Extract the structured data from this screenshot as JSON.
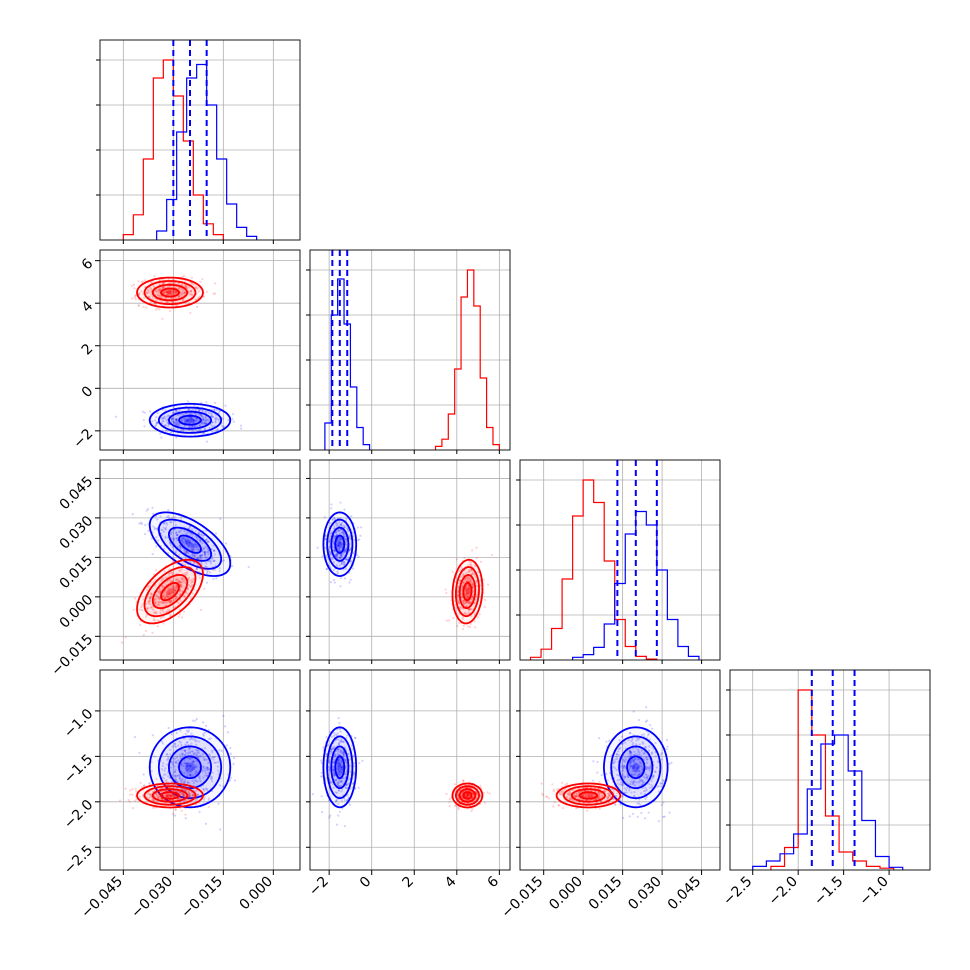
{
  "chart_data": {
    "type": "corner",
    "title": "",
    "parameters": [
      "",
      "",
      "",
      ""
    ],
    "series": [
      {
        "name": "",
        "color": "#0000ff",
        "means": [
          -0.025,
          -1.5,
          0.02,
          -1.62
        ],
        "stds": [
          0.0055,
          0.35,
          0.0055,
          0.2
        ],
        "correlations": [
          [
            0,
            0,
            1,
            0.45
          ],
          [
            0,
            2,
            1,
            -0.6
          ],
          [
            1,
            2,
            -0.6,
            0
          ],
          [
            0,
            3,
            0.3,
            0
          ],
          [
            1,
            3,
            0,
            0
          ],
          [
            2,
            3,
            0,
            0
          ]
        ],
        "quantiles": [
          [
            -0.03,
            -0.025,
            -0.02
          ],
          [
            -1.85,
            -1.5,
            -1.15
          ],
          [
            0.013,
            0.02,
            0.028
          ],
          [
            -1.85,
            -1.62,
            -1.38
          ]
        ]
      },
      {
        "name": "",
        "color": "#ff0000",
        "means": [
          -0.031,
          4.5,
          0.002,
          -1.93
        ],
        "stds": [
          0.0045,
          0.32,
          0.0055,
          0.06
        ],
        "correlations": [
          [
            0,
            2,
            0.55
          ],
          [
            1,
            2,
            0.1
          ],
          [
            0,
            3,
            0.0
          ],
          [
            1,
            3,
            0.0
          ],
          [
            2,
            3,
            0.0
          ]
        ]
      }
    ],
    "marginal_histograms": {
      "blue": [
        {
          "edges": [
            -0.035,
            -0.032,
            -0.029,
            -0.026,
            -0.023,
            -0.02,
            -0.017,
            -0.014,
            -0.011,
            -0.008,
            -0.005
          ],
          "counts": [
            10,
            45,
            120,
            180,
            195,
            150,
            90,
            40,
            14,
            4
          ]
        },
        {
          "edges": [
            -2.2,
            -1.9,
            -1.6,
            -1.3,
            -1.0,
            -0.7,
            -0.4,
            -0.1
          ],
          "counts": [
            30,
            150,
            190,
            140,
            70,
            25,
            6
          ]
        },
        {
          "edges": [
            -0.004,
            0.0,
            0.004,
            0.008,
            0.012,
            0.016,
            0.02,
            0.024,
            0.028,
            0.032,
            0.036,
            0.04,
            0.044
          ],
          "counts": [
            3,
            6,
            14,
            40,
            85,
            140,
            165,
            150,
            100,
            45,
            15,
            4
          ]
        },
        {
          "edges": [
            -2.5,
            -2.35,
            -2.2,
            -2.05,
            -1.9,
            -1.75,
            -1.6,
            -1.45,
            -1.3,
            -1.15,
            -1.0,
            -0.85
          ],
          "counts": [
            4,
            10,
            18,
            40,
            90,
            140,
            150,
            110,
            55,
            15,
            3
          ]
        }
      ],
      "red": [
        {
          "edges": [
            -0.045,
            -0.042,
            -0.039,
            -0.036,
            -0.033,
            -0.03,
            -0.027,
            -0.024,
            -0.021,
            -0.018,
            -0.015
          ],
          "counts": [
            6,
            28,
            90,
            180,
            200,
            160,
            110,
            50,
            18,
            6
          ]
        },
        {
          "edges": [
            3.0,
            3.3,
            3.6,
            3.9,
            4.2,
            4.5,
            4.8,
            5.1,
            5.4,
            5.7,
            6.0
          ],
          "counts": [
            4,
            12,
            40,
            90,
            170,
            200,
            160,
            80,
            25,
            6
          ]
        },
        {
          "edges": [
            -0.02,
            -0.016,
            -0.012,
            -0.008,
            -0.004,
            0.0,
            0.004,
            0.008,
            0.012,
            0.016,
            0.02,
            0.024,
            0.028
          ],
          "counts": [
            3,
            12,
            35,
            90,
            160,
            200,
            175,
            110,
            45,
            15,
            4,
            1
          ]
        },
        {
          "edges": [
            -2.3,
            -2.15,
            -2.0,
            -1.85,
            -1.7,
            -1.55,
            -1.4,
            -1.25,
            -1.1,
            -0.95
          ],
          "counts": [
            4,
            25,
            200,
            150,
            60,
            20,
            10,
            4,
            2
          ]
        }
      ]
    },
    "axis_ranges": [
      [
        -0.052,
        0.008
      ],
      [
        -2.9,
        6.5
      ],
      [
        -0.024,
        0.052
      ],
      [
        -2.75,
        -0.55
      ]
    ],
    "tick_labels": [
      [
        "−0.045",
        "−0.030",
        "−0.015",
        "0.000"
      ],
      [
        "−2",
        "0",
        "2",
        "4",
        "6"
      ],
      [
        "−0.015",
        "0.000",
        "0.015",
        "0.030",
        "0.045"
      ],
      [
        "−2.5",
        "−2.0",
        "−1.5",
        "−1.0"
      ]
    ],
    "tick_values": [
      [
        -0.045,
        -0.03,
        -0.015,
        0.0
      ],
      [
        -2,
        0,
        2,
        4,
        6
      ],
      [
        -0.015,
        0.0,
        0.015,
        0.03,
        0.045
      ],
      [
        -2.5,
        -2.0,
        -1.5,
        -1.0
      ]
    ],
    "grid": true,
    "legend": "none",
    "xlabel": "",
    "ylabel": ""
  }
}
